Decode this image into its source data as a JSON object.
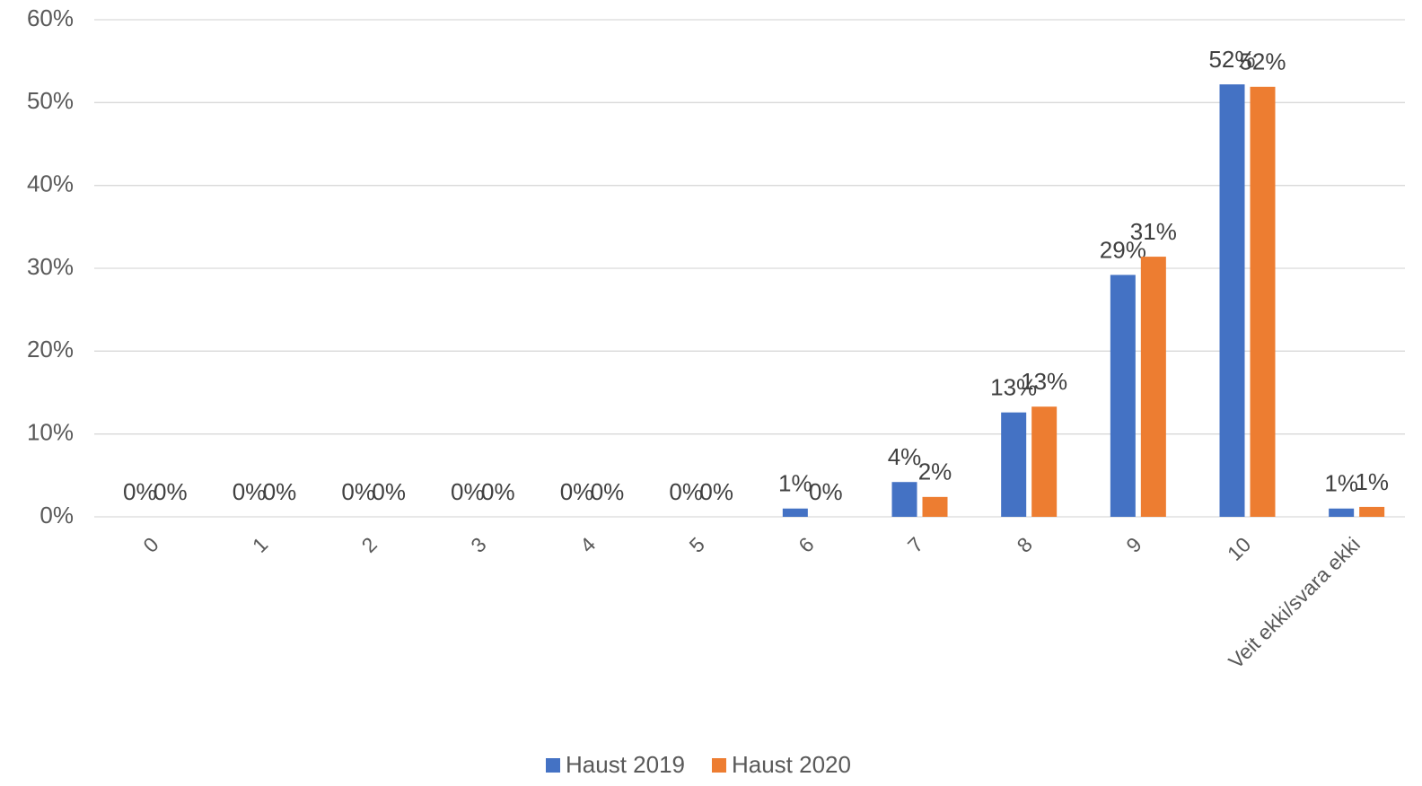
{
  "chart_data": {
    "type": "bar",
    "categories": [
      "0",
      "1",
      "2",
      "3",
      "4",
      "5",
      "6",
      "7",
      "8",
      "9",
      "10",
      "Veit ekki/svara ekki"
    ],
    "series": [
      {
        "name": "Haust 2019",
        "color": "#4472c4",
        "values": [
          0,
          0,
          0,
          0,
          0,
          0,
          1.0,
          4.2,
          12.6,
          29.2,
          52.2,
          1.0
        ],
        "value_labels": [
          "0%",
          "0%",
          "0%",
          "0%",
          "0%",
          "0%",
          "1%",
          "4%",
          "13%",
          "29%",
          "52%",
          "1%"
        ]
      },
      {
        "name": "Haust 2020",
        "color": "#ed7d31",
        "values": [
          0,
          0,
          0,
          0,
          0,
          0,
          0,
          2.4,
          13.3,
          31.4,
          51.9,
          1.2
        ],
        "value_labels": [
          "0%",
          "0%",
          "0%",
          "0%",
          "0%",
          "0%",
          "0%",
          "2%",
          "13%",
          "31%",
          "52%",
          "1%"
        ]
      }
    ],
    "ylim": [
      0,
      60
    ],
    "yticks": [
      {
        "value": 0,
        "label": "0%"
      },
      {
        "value": 10,
        "label": "10%"
      },
      {
        "value": 20,
        "label": "20%"
      },
      {
        "value": 30,
        "label": "30%"
      },
      {
        "value": 40,
        "label": "40%"
      },
      {
        "value": 50,
        "label": "50%"
      },
      {
        "value": 60,
        "label": "60%"
      }
    ],
    "grid": true,
    "legend": "bottom"
  }
}
